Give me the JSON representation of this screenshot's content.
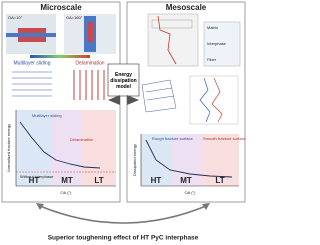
{
  "panels": [
    {
      "title": "Microscale",
      "images": [
        {
          "label": "OA=10°"
        },
        {
          "label": "OA=160°"
        }
      ],
      "mechanisms": [
        "Multilayer sliding",
        "Delamination"
      ],
      "chart": {
        "y_label": "Normalized fracture energy",
        "x_label": "OA (°)",
        "zones": [
          "HT",
          "MT",
          "LT"
        ],
        "annotations": [
          "Multilayer sliding",
          "Delamination",
          "Without interphase"
        ]
      }
    },
    {
      "title": "Mesoscale",
      "layers": [
        "Matrix",
        "Interphase",
        "Fiber"
      ],
      "chart": {
        "y_label": "Dissipated energy",
        "x_label": "OA (°)",
        "zones": [
          "HT",
          "MT",
          "LT"
        ],
        "annotations": [
          "Rough fracture surface",
          "Smooth fracture surface"
        ]
      }
    }
  ],
  "center": "Energy dissipation model",
  "footer": "Superior toughening effect of HT PyC interphase"
}
